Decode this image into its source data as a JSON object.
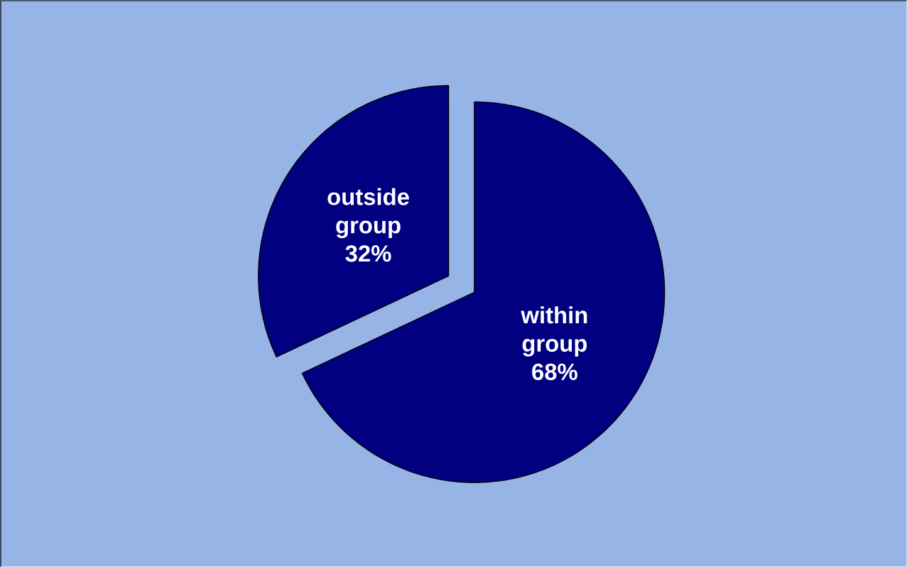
{
  "chart_data": {
    "type": "pie",
    "categories": [
      "within group",
      "outside group"
    ],
    "values": [
      68,
      32
    ],
    "colors": [
      "#000080",
      "#000080"
    ],
    "value_labels": [
      "68%",
      "32%"
    ]
  }
}
